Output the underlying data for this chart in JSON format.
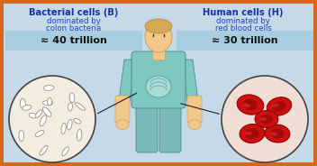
{
  "bg_color": "#c5d9e8",
  "border_color": "#d4691e",
  "border_width": 4,
  "title_left": "Bacterial cells (B)",
  "subtitle_left1": "dominated by",
  "subtitle_left2": "colon bacteria",
  "value_left": "≈ 40 trillion",
  "title_right": "Human cells (H)",
  "subtitle_right1": "dominated by",
  "subtitle_right2": "red blood cells",
  "value_right": "≈ 30 trillion",
  "title_color": "#1535a0",
  "subtitle_color": "#2244bb",
  "value_box_color": "#a8cce0",
  "value_text_color": "#111111",
  "bacteria_bg": "#f2ede0",
  "blood_bg": "#f0ddd5",
  "blood_cell_color": "#cc1010",
  "blood_cell_dark": "#880000",
  "circle_border": "#444444",
  "shirt_color": "#7ec8c0",
  "pants_color": "#7ababa",
  "skin_color": "#f2c88a",
  "shirt_outline": "#4a9090",
  "skin_outline": "#c8a060",
  "line_color": "#222222"
}
